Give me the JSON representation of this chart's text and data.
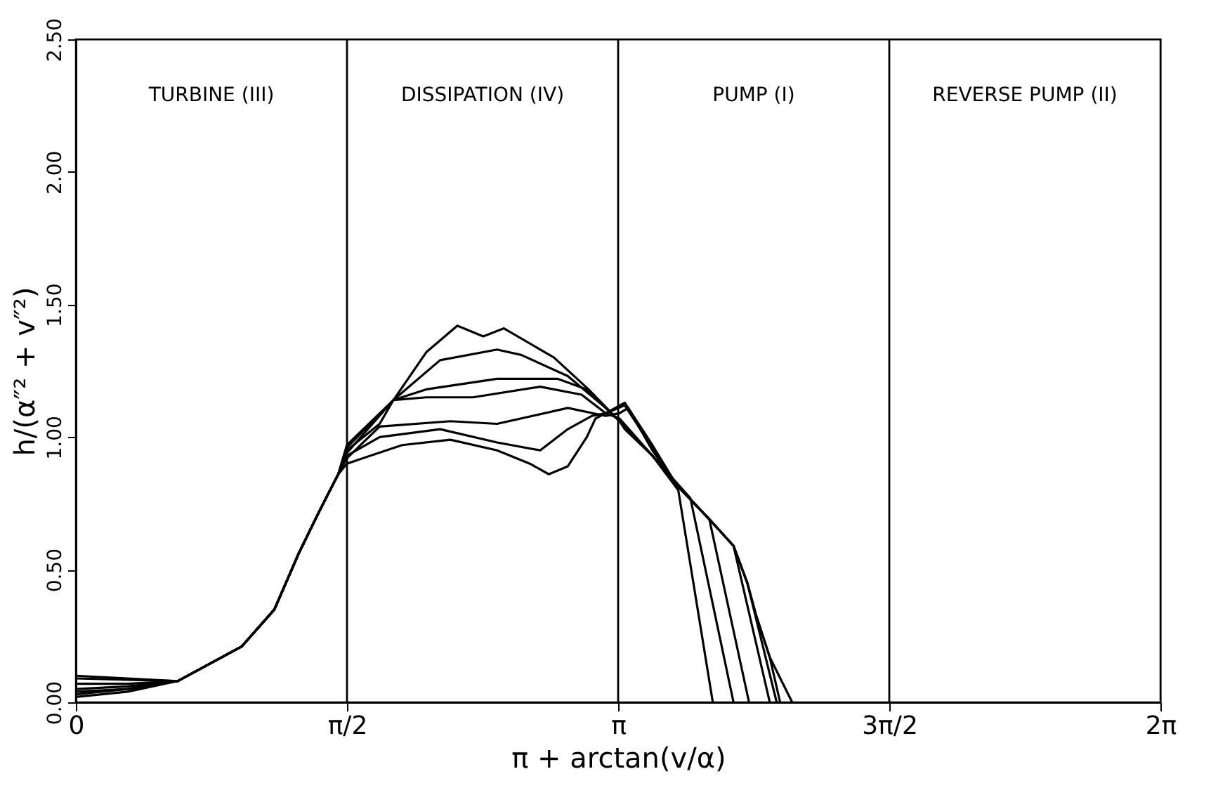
{
  "chart_data": {
    "type": "line",
    "xlabel": "π + arctan(v/α)",
    "ylabel": "h/(α″² + v″²)",
    "xlim": [
      0,
      6.2832
    ],
    "ylim": [
      0,
      2.5
    ],
    "xticks": [
      {
        "value": 0,
        "label": "0"
      },
      {
        "value": 1.5708,
        "label": "π/2"
      },
      {
        "value": 3.1416,
        "label": "π"
      },
      {
        "value": 4.7124,
        "label": "3π/2"
      },
      {
        "value": 6.2832,
        "label": "2π"
      }
    ],
    "yticks": [
      {
        "value": 0,
        "label": "0.00"
      },
      {
        "value": 0.5,
        "label": "0.50"
      },
      {
        "value": 1,
        "label": "1.00"
      },
      {
        "value": 1.5,
        "label": "1.50"
      },
      {
        "value": 2,
        "label": "2.00"
      },
      {
        "value": 2.5,
        "label": "2.50"
      }
    ],
    "grid": false,
    "legend": false,
    "marker": "none",
    "line_style": "solid",
    "ref_lines": [
      {
        "axis": "x",
        "value": 1.5708,
        "color": "#000000"
      },
      {
        "axis": "x",
        "value": 3.1416,
        "color": "#000000"
      },
      {
        "axis": "x",
        "value": 4.7124,
        "color": "#000000"
      }
    ],
    "annotations": [
      "TURBINE (III)",
      "DISSIPATION (IV)",
      "PUMP (I)",
      "REVERSE PUMP (II)"
    ],
    "series": [
      {
        "color": "#000000",
        "x": [
          0,
          0.3,
          0.59,
          0.96,
          1.15,
          1.29,
          1.41,
          1.52,
          1.57,
          1.76,
          1.84,
          2.03,
          2.21,
          2.36,
          2.48,
          2.77,
          2.97,
          3.15,
          3.18,
          3.34,
          3.49,
          3.69
        ],
        "values": [
          0.1,
          0.09,
          0.08,
          0.21,
          0.35,
          0.56,
          0.72,
          0.86,
          0.95,
          1.05,
          1.14,
          1.32,
          1.42,
          1.38,
          1.41,
          1.3,
          1.18,
          1.06,
          1.03,
          0.93,
          0.8,
          0
        ]
      },
      {
        "color": "#000000",
        "x": [
          0,
          0.3,
          0.59,
          0.96,
          1.15,
          1.29,
          1.41,
          1.52,
          1.57,
          1.84,
          2.11,
          2.44,
          2.58,
          2.85,
          3.07,
          3.15,
          3.34,
          3.56,
          3.81
        ],
        "values": [
          0.09,
          0.085,
          0.08,
          0.21,
          0.35,
          0.56,
          0.72,
          0.86,
          0.96,
          1.14,
          1.29,
          1.33,
          1.31,
          1.23,
          1.11,
          1.06,
          0.93,
          0.77,
          0
        ]
      },
      {
        "color": "#000000",
        "x": [
          0,
          0.3,
          0.59,
          0.96,
          1.15,
          1.29,
          1.41,
          1.52,
          1.57,
          1.84,
          2.03,
          2.44,
          2.79,
          2.96,
          3.1,
          3.15,
          3.34,
          3.48,
          3.67,
          3.9
        ],
        "values": [
          0.07,
          0.07,
          0.08,
          0.21,
          0.35,
          0.56,
          0.72,
          0.86,
          0.94,
          1.14,
          1.18,
          1.22,
          1.22,
          1.18,
          1.09,
          1.06,
          0.93,
          0.82,
          0.69,
          0
        ]
      },
      {
        "color": "#000000",
        "x": [
          0,
          0.3,
          0.59,
          0.96,
          1.15,
          1.29,
          1.41,
          1.52,
          1.57,
          1.84,
          2.03,
          2.3,
          2.69,
          2.93,
          3.07,
          3.15,
          3.34,
          3.48,
          3.67,
          3.81,
          4.02
        ],
        "values": [
          0.05,
          0.06,
          0.08,
          0.21,
          0.35,
          0.56,
          0.72,
          0.86,
          0.97,
          1.14,
          1.15,
          1.15,
          1.19,
          1.16,
          1.09,
          1.07,
          0.93,
          0.82,
          0.69,
          0.59,
          0
        ]
      },
      {
        "color": "#000000",
        "x": [
          0,
          0.3,
          0.59,
          0.96,
          1.15,
          1.29,
          1.41,
          1.52,
          1.57,
          1.76,
          2.17,
          2.44,
          2.85,
          3.07,
          3.15,
          3.2,
          3.34,
          3.48,
          3.67,
          3.81,
          3.89,
          4.06
        ],
        "values": [
          0.04,
          0.05,
          0.08,
          0.21,
          0.35,
          0.56,
          0.72,
          0.86,
          0.92,
          1.04,
          1.06,
          1.05,
          1.11,
          1.08,
          1.09,
          1.11,
          0.95,
          0.82,
          0.69,
          0.59,
          0.45,
          0
        ]
      },
      {
        "color": "#000000",
        "x": [
          0,
          0.3,
          0.59,
          0.96,
          1.15,
          1.29,
          1.41,
          1.52,
          1.57,
          1.76,
          2.11,
          2.44,
          2.69,
          2.85,
          2.99,
          3.07,
          3.18,
          3.34,
          3.48,
          3.67,
          3.81,
          3.89,
          3.94,
          4.02,
          4.08
        ],
        "values": [
          0.03,
          0.05,
          0.08,
          0.21,
          0.35,
          0.56,
          0.72,
          0.86,
          0.93,
          1.0,
          1.03,
          0.98,
          0.95,
          1.03,
          1.08,
          1.09,
          1.13,
          0.97,
          0.82,
          0.69,
          0.59,
          0.45,
          0.33,
          0.17,
          0
        ]
      },
      {
        "color": "#000000",
        "x": [
          0,
          0.3,
          0.59,
          0.96,
          1.15,
          1.29,
          1.41,
          1.52,
          1.57,
          1.89,
          2.17,
          2.44,
          2.63,
          2.74,
          2.85,
          2.96,
          3.01,
          3.07,
          3.18,
          3.34,
          3.48,
          3.67,
          3.81,
          3.89,
          3.94,
          4.02,
          4.15
        ],
        "values": [
          0.02,
          0.04,
          0.08,
          0.21,
          0.35,
          0.56,
          0.72,
          0.86,
          0.9,
          0.97,
          0.99,
          0.95,
          0.9,
          0.86,
          0.89,
          1.0,
          1.07,
          1.09,
          1.12,
          0.96,
          0.82,
          0.69,
          0.59,
          0.45,
          0.33,
          0.17,
          0
        ]
      }
    ]
  }
}
